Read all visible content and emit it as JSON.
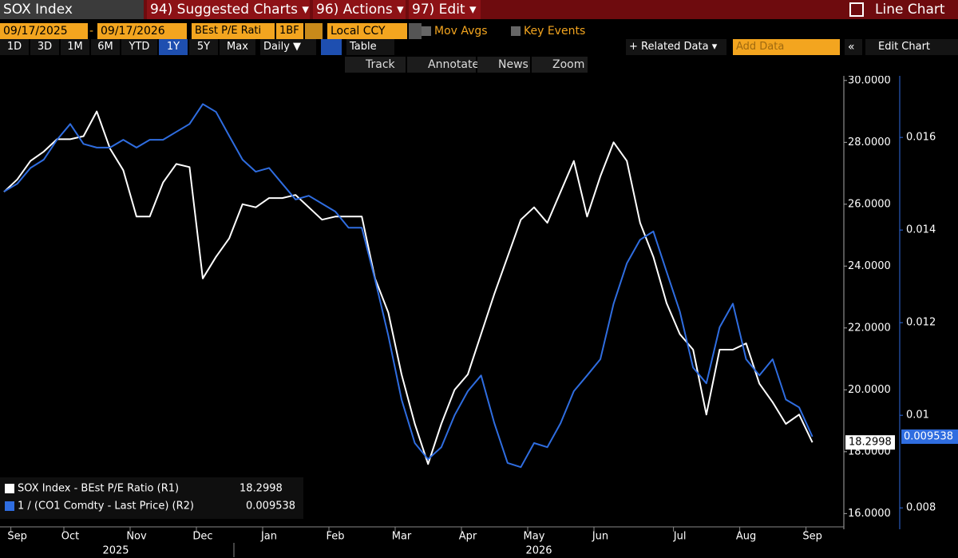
{
  "toolbar": {
    "ticker": "SOX Index",
    "menus": [
      "94) Suggested Charts ▾",
      "96) Actions ▾",
      "97) Edit ▾"
    ],
    "chart_type": "Line Chart"
  },
  "settings": {
    "start_date": "09/17/2025",
    "separator": "-",
    "end_date": "09/17/2026",
    "field": "BEst P/E Rati",
    "field_code": "1BF",
    "currency": "Local CCY",
    "toggles": [
      "Mov Avgs",
      "Key Events"
    ]
  },
  "periods": [
    "1D",
    "3D",
    "1M",
    "6M",
    "YTD",
    "1Y",
    "5Y",
    "Max"
  ],
  "active_period": 5,
  "frequency": "Daily ▼",
  "table_button": "Table",
  "related_data": "+ Related Data ▾",
  "add_data": "Add Data",
  "collapse": "«",
  "edit_chart": "Edit Chart",
  "chart_tools": [
    "Track",
    "Annotate",
    "News",
    "Zoom"
  ],
  "chart_data": {
    "type": "line",
    "categories": [
      null,
      "Sep",
      null,
      null,
      null,
      "Oct",
      null,
      null,
      null,
      null,
      "Nov",
      null,
      null,
      null,
      null,
      "Dec",
      null,
      null,
      null,
      null,
      "Jan",
      null,
      null,
      null,
      null,
      "Feb",
      null,
      null,
      null,
      null,
      "Mar",
      null,
      null,
      null,
      null,
      "Apr",
      null,
      null,
      null,
      null,
      "May",
      null,
      null,
      null,
      null,
      "Jun",
      null,
      null,
      null,
      null,
      null,
      "Jul",
      null,
      null,
      null,
      null,
      "Aug",
      null,
      null,
      null,
      null,
      "Sep"
    ],
    "years": [
      "2025",
      "2026"
    ],
    "series": [
      {
        "name": "SOX Index - BEst P/E Ratio (R1)",
        "color": "#ffffff",
        "axis": "y",
        "values": [
          26.4,
          26.8,
          27.4,
          27.7,
          28.1,
          28.1,
          28.2,
          29.0,
          27.8,
          27.1,
          25.6,
          25.6,
          26.7,
          27.3,
          27.2,
          23.6,
          24.3,
          24.9,
          26.0,
          25.9,
          26.2,
          26.2,
          26.3,
          25.9,
          25.5,
          25.6,
          25.6,
          25.6,
          23.6,
          22.5,
          20.5,
          18.9,
          17.6,
          18.9,
          20.0,
          20.5,
          21.8,
          23.1,
          24.3,
          25.5,
          25.9,
          25.4,
          26.4,
          27.4,
          25.6,
          26.9,
          28.0,
          27.4,
          25.4,
          24.3,
          22.8,
          21.8,
          21.3,
          19.2,
          21.3,
          21.3,
          21.5,
          20.2,
          19.6,
          18.9,
          19.2,
          18.2998
        ]
      },
      {
        "name": "1 / (CO1 Comdty - Last Price) (R2)",
        "color": "#2f6de0",
        "axis": "y2",
        "values": [
          0.01483,
          0.015,
          0.01534,
          0.01552,
          0.01595,
          0.01629,
          0.01586,
          0.01578,
          0.01578,
          0.01595,
          0.01578,
          0.01595,
          0.01595,
          0.01612,
          0.01629,
          0.01672,
          0.01655,
          0.01603,
          0.01552,
          0.01526,
          0.01534,
          0.015,
          0.01466,
          0.01474,
          0.01457,
          0.0144,
          0.01405,
          0.01405,
          0.01293,
          0.01172,
          0.01034,
          0.0094,
          0.00905,
          0.00931,
          0.01,
          0.01052,
          0.01086,
          0.00983,
          0.00897,
          0.00888,
          0.0094,
          0.00931,
          0.00983,
          0.01052,
          0.01086,
          0.01121,
          0.01241,
          0.01328,
          0.01379,
          0.01397,
          0.0131,
          0.01224,
          0.01103,
          0.01069,
          0.0119,
          0.01241,
          0.01121,
          0.01086,
          0.01121,
          0.01034,
          0.01017,
          0.009538
        ]
      }
    ],
    "ylim": [
      15.57,
      30.15
    ],
    "yticks": [
      {
        "value": 16,
        "label": "16.0000"
      },
      {
        "value": 18,
        "label": "18.0000"
      },
      {
        "value": 20,
        "label": "20.0000"
      },
      {
        "value": 22,
        "label": "22.0000"
      },
      {
        "value": 24,
        "label": "24.0000"
      },
      {
        "value": 26,
        "label": "26.0000"
      },
      {
        "value": 28,
        "label": "28.0000"
      },
      {
        "value": 30,
        "label": "30.0000"
      }
    ],
    "y2lim": [
      0.00759,
      0.01733
    ],
    "y2ticks": [
      0.008,
      0.01,
      0.012,
      0.014,
      0.016
    ],
    "legend": "bottom-left",
    "grid": false
  }
}
